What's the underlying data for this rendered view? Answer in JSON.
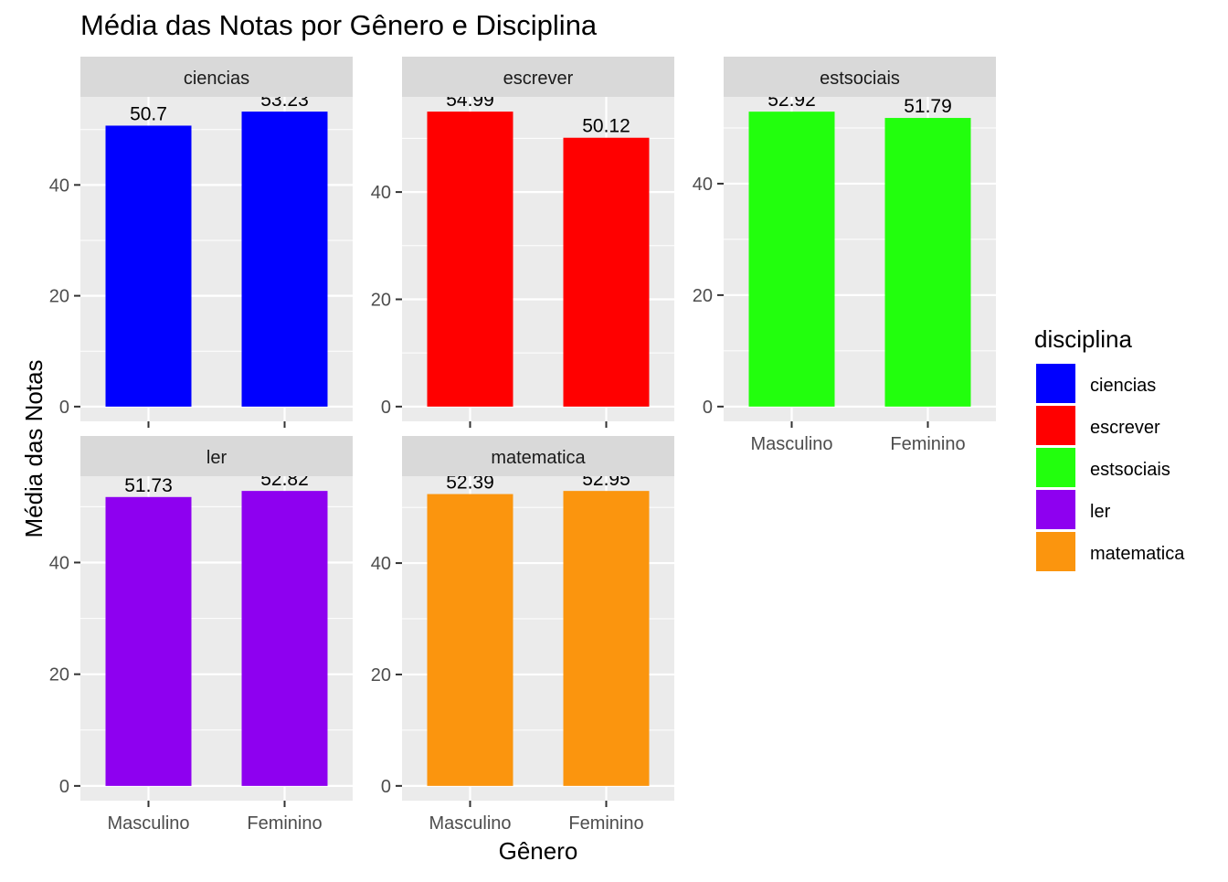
{
  "chart_data": {
    "type": "bar",
    "title": "Média das Notas por Gênero e Disciplina",
    "xlabel": "Gênero",
    "ylabel": "Média das Notas",
    "categories": [
      "Masculino",
      "Feminino"
    ],
    "facet_layout": "free-y facets, 3 columns x 2 rows",
    "y_ticks": [
      0,
      20,
      40
    ],
    "grid": true,
    "legend": {
      "title": "disciplina",
      "placement": "right",
      "entries": [
        "ciencias",
        "escrever",
        "estsociais",
        "ler",
        "matematica"
      ]
    },
    "series": [
      {
        "name": "ciencias",
        "color": "#0000ff",
        "values": [
          50.7,
          53.23
        ],
        "labels": [
          "50.7",
          "53.23"
        ],
        "ylim": [
          -2.66,
          55.89
        ]
      },
      {
        "name": "escrever",
        "color": "#ff0000",
        "values": [
          54.99,
          50.12
        ],
        "labels": [
          "54.99",
          "50.12"
        ],
        "ylim": [
          -2.75,
          57.74
        ]
      },
      {
        "name": "estsociais",
        "color": "#22ff0d",
        "values": [
          52.92,
          51.79
        ],
        "labels": [
          "52.92",
          "51.79"
        ],
        "ylim": [
          -2.65,
          55.57
        ]
      },
      {
        "name": "ler",
        "color": "#8e00f0",
        "values": [
          51.73,
          52.82
        ],
        "labels": [
          "51.73",
          "52.82"
        ],
        "ylim": [
          -2.64,
          55.46
        ]
      },
      {
        "name": "matematica",
        "color": "#fb950e",
        "values": [
          52.39,
          52.95
        ],
        "labels": [
          "52.39",
          "52.95"
        ],
        "ylim": [
          -2.65,
          55.6
        ]
      }
    ]
  }
}
